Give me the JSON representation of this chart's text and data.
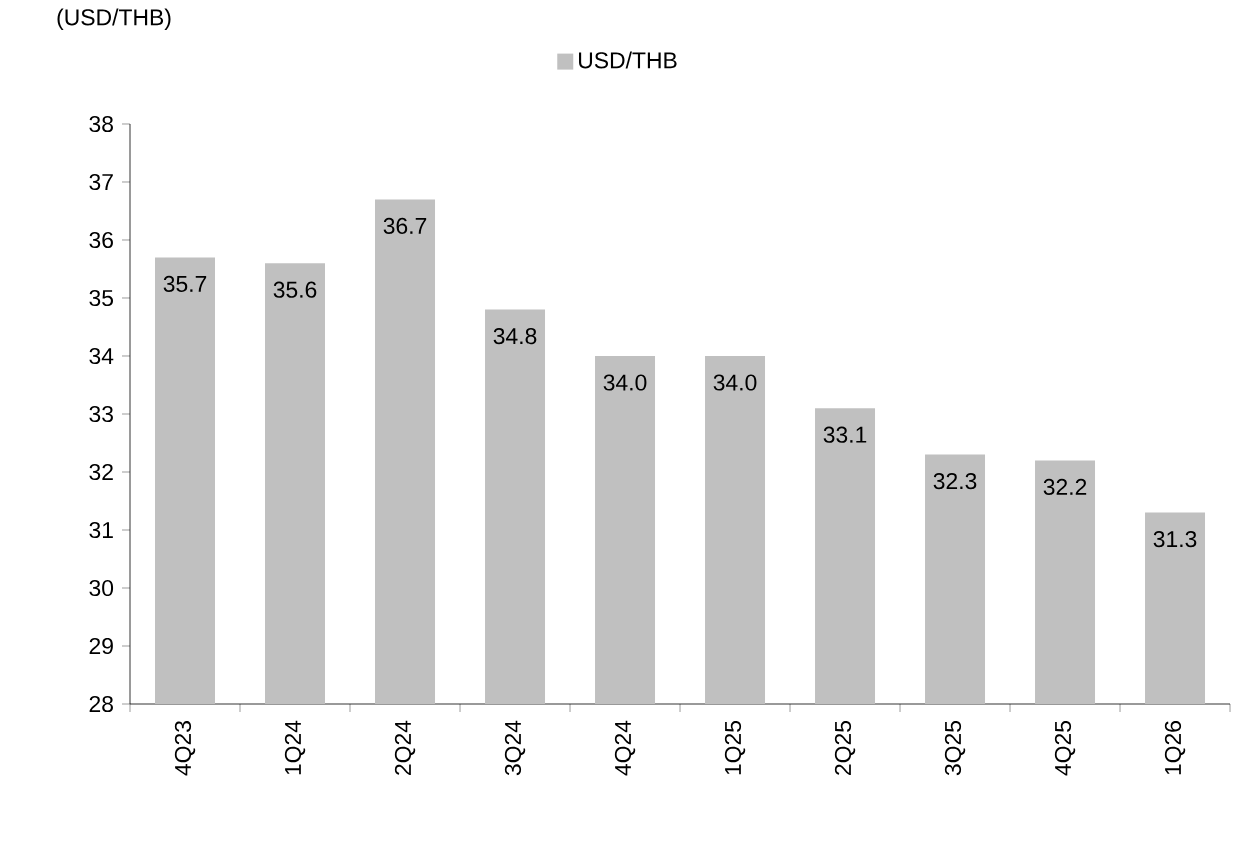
{
  "chart_data": {
    "type": "bar",
    "ylabel": "(USD/THB)",
    "categories": [
      "4Q23",
      "1Q24",
      "2Q24",
      "3Q24",
      "4Q24",
      "1Q25",
      "2Q25",
      "3Q25",
      "4Q25",
      "1Q26"
    ],
    "series": [
      {
        "name": "USD/THB",
        "color": "#c0c0c0",
        "values": [
          35.7,
          35.6,
          36.7,
          34.8,
          34.0,
          34.0,
          33.1,
          32.3,
          32.2,
          31.3
        ],
        "value_labels": [
          "35.7",
          "35.6",
          "36.7",
          "34.8",
          "34.0",
          "34.0",
          "33.1",
          "32.3",
          "32.2",
          "31.3"
        ]
      }
    ],
    "ylim": [
      28,
      38
    ],
    "yticks": [
      28,
      29,
      30,
      31,
      32,
      33,
      34,
      35,
      36,
      37,
      38
    ],
    "legend": "top",
    "grid": false
  }
}
